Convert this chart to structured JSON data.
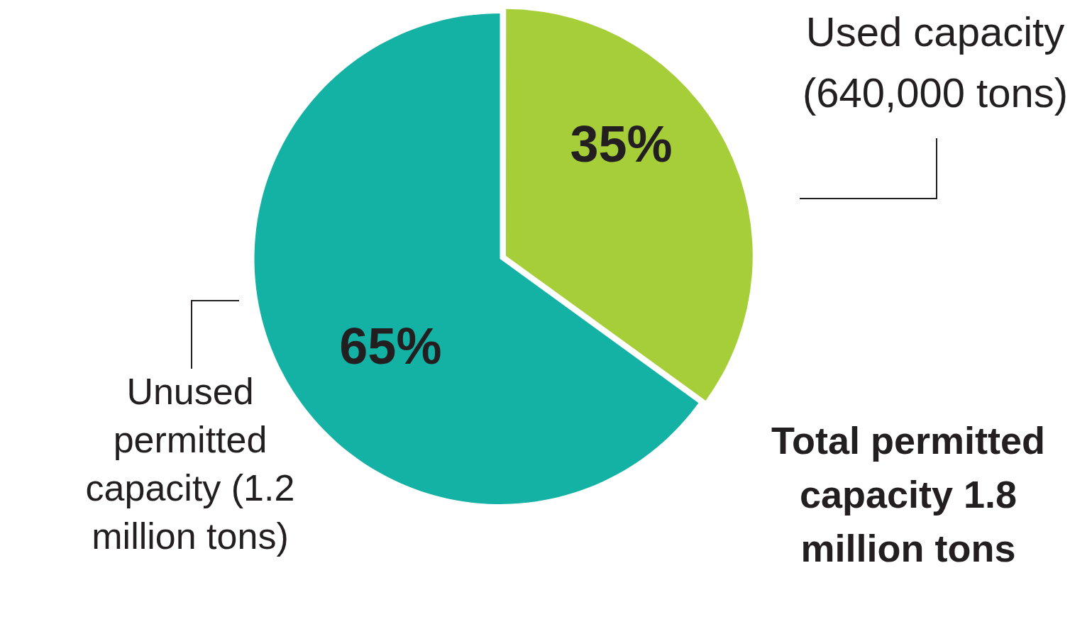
{
  "chart_data": {
    "type": "pie",
    "categories": [
      "Used capacity (640,000 tons)",
      "Unused permitted capacity (1.2 million tons)"
    ],
    "values": [
      35,
      65
    ],
    "colors": [
      "#a6ce39",
      "#14b2a5"
    ],
    "value_labels": [
      "35%",
      "65%"
    ],
    "legend": false,
    "annotations": [
      "Total permitted capacity 1.8 million tons"
    ]
  }
}
